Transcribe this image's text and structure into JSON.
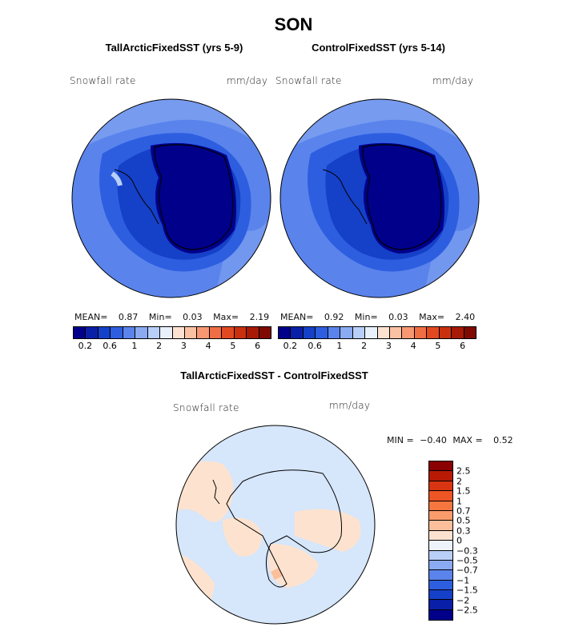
{
  "title": "SON",
  "panels": [
    {
      "title": "TallArcticFixedSST (yrs 5-9)",
      "variable": "Snowfall rate",
      "units": "mm/day",
      "mean_label": "MEAN=",
      "mean": "0.87",
      "min_label": "Min=",
      "min": "0.03",
      "max_label": "Max=",
      "max": "2.19"
    },
    {
      "title": "ControlFixedSST (yrs 5-14)",
      "variable": "Snowfall rate",
      "units": "mm/day",
      "mean_label": "MEAN=",
      "mean": "0.92",
      "min_label": "Min=",
      "min": "0.03",
      "max_label": "Max=",
      "max": "2.40"
    }
  ],
  "colorbar": {
    "ticks": [
      "0.2",
      "0.6",
      "1",
      "2",
      "3",
      "4",
      "5",
      "6"
    ],
    "colors": [
      "#00008b",
      "#0a1fa8",
      "#1540c8",
      "#2e5ee0",
      "#5a84ec",
      "#8aaaf2",
      "#b8cff8",
      "#e8f0fc",
      "#fde2d2",
      "#fbc1a3",
      "#f79872",
      "#f06e44",
      "#e24920",
      "#c9300e",
      "#a61a06",
      "#7e0a02"
    ]
  },
  "diff": {
    "title": "TallArcticFixedSST - ControlFixedSST",
    "variable": "Snowfall rate",
    "units": "mm/day",
    "min_label": "MIN =",
    "min": "−0.40",
    "max_label": "MAX =",
    "max": "0.52",
    "levels": [
      "2.5",
      "2",
      "1.5",
      "1",
      "0.7",
      "0.5",
      "0.3",
      "0",
      "−0.3",
      "−0.5",
      "−0.7",
      "−1",
      "−1.5",
      "−2",
      "−2.5"
    ],
    "colors": [
      "#8b0000",
      "#b81a06",
      "#d93512",
      "#ee5524",
      "#f6763f",
      "#fa9b6c",
      "#fcbf9b",
      "#fde3cf",
      "#eef3fb",
      "#b8cff8",
      "#8aaaf2",
      "#5a84ec",
      "#2e5ee0",
      "#1540c8",
      "#0a1fa8",
      "#00008b"
    ]
  }
}
